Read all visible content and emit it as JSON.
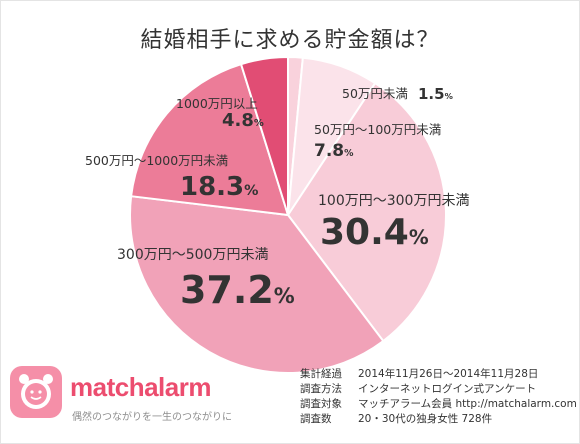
{
  "chart_data": {
    "type": "pie",
    "title": "結婚相手に求める貯金額は？",
    "unit": "%",
    "slices": [
      {
        "label": "50万円未満",
        "value": 1.5,
        "display": "1.5",
        "color": "#f9d2dc"
      },
      {
        "label": "50万円～100万円未満",
        "value": 7.8,
        "display": "7.8",
        "color": "#fbe3ea"
      },
      {
        "label": "100万円～300万円未満",
        "value": 30.4,
        "display": "30.4",
        "color": "#f8ccd8"
      },
      {
        "label": "300万円～500万円未満",
        "value": 37.2,
        "display": "37.2",
        "color": "#f1a2b8"
      },
      {
        "label": "500万円～1000万円未満",
        "value": 18.3,
        "display": "18.3",
        "color": "#ec7c98"
      },
      {
        "label": "1000万円以上",
        "value": 4.8,
        "display": "4.8",
        "color": "#e14d74"
      }
    ]
  },
  "logo": {
    "name": "matchalarm",
    "tagline": "偶然のつながりを一生のつながりに"
  },
  "survey": [
    {
      "key": "集計経過",
      "value": "2014年11月26日～2014年11月28日"
    },
    {
      "key": "調査方法",
      "value": "インターネットログイン式アンケート"
    },
    {
      "key": "調査対象",
      "value": "マッチアラーム会員 http://matchalarm.com"
    },
    {
      "key": "調査数",
      "value": "20・30代の独身女性 728件"
    }
  ]
}
